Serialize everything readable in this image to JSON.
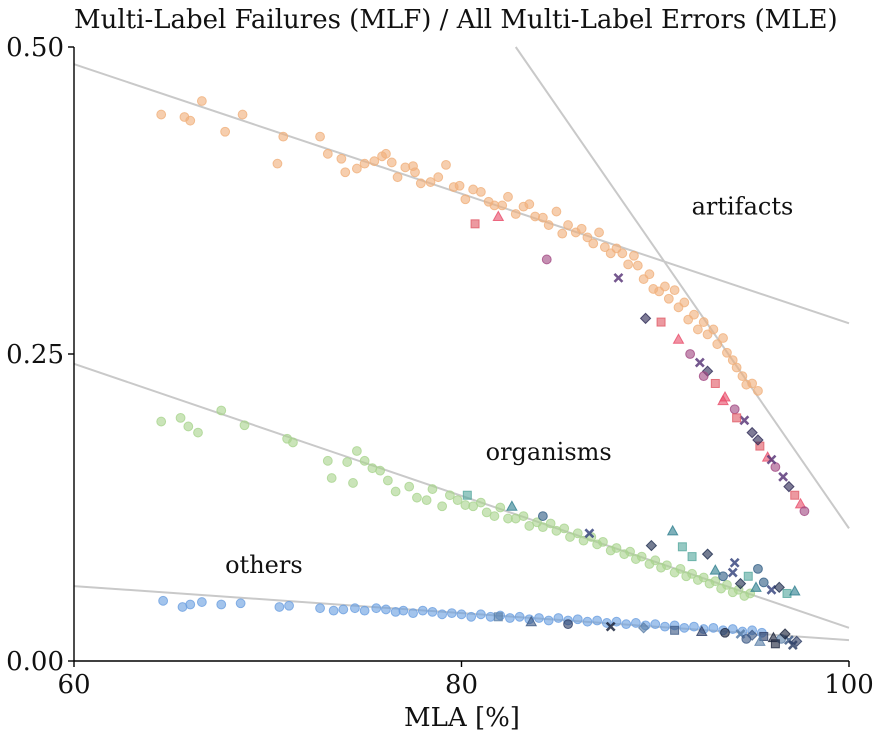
{
  "colors": {
    "artifacts_main": "#f0b07c",
    "artifacts_alt": [
      "#e05a66",
      "#e84d6a",
      "#a24a83",
      "#5c3a7a",
      "#2e2a56"
    ],
    "organisms_main": "#a9d48e",
    "organisms_alt": [
      "#55a89e",
      "#2f7f8f",
      "#325f86",
      "#3a4880",
      "#1e2d4f"
    ],
    "others_main": "#6b9fe0",
    "others_alt": [
      "#5b7fa8",
      "#3d5a86",
      "#2e3f66",
      "#1b243c"
    ],
    "trend_line": "#c9c9c9",
    "axis": "#000000"
  },
  "chart_data": {
    "type": "scatter",
    "title": "Multi-Label Failures (MLF) / All Multi-Label Errors (MLE)",
    "xlabel": "MLA [%]",
    "ylabel": "",
    "xlim": [
      60,
      100
    ],
    "ylim": [
      0,
      0.5
    ],
    "x_ticks": [
      "60",
      "80",
      "100"
    ],
    "y_ticks": [
      "0.00",
      "0.25",
      "0.50"
    ],
    "grid": false,
    "annotations": [
      {
        "text": "artifacts",
        "x": 94.5,
        "y": 0.37
      },
      {
        "text": "organisms",
        "x": 84.5,
        "y": 0.17
      },
      {
        "text": "others",
        "x": 69.8,
        "y": 0.078
      }
    ],
    "trend_lines": [
      {
        "x": [
          60,
          100
        ],
        "y": [
          0.486,
          0.275
        ]
      },
      {
        "x": [
          82.8,
          100
        ],
        "y": [
          0.5,
          0.108
        ]
      },
      {
        "x": [
          60,
          100
        ],
        "y": [
          0.242,
          0.027
        ]
      },
      {
        "x": [
          60,
          100
        ],
        "y": [
          0.061,
          0.017
        ]
      }
    ],
    "series": [
      {
        "group": "artifacts",
        "points": [
          [
            64.5,
            0.445
          ],
          [
            65.7,
            0.443
          ],
          [
            66.0,
            0.44
          ],
          [
            66.6,
            0.456
          ],
          [
            67.8,
            0.431
          ],
          [
            68.7,
            0.445
          ],
          [
            70.5,
            0.405
          ],
          [
            70.8,
            0.427
          ],
          [
            72.7,
            0.427
          ],
          [
            73.1,
            0.413
          ],
          [
            73.8,
            0.409
          ],
          [
            74.0,
            0.398
          ],
          [
            74.6,
            0.401
          ],
          [
            75.0,
            0.405
          ],
          [
            75.5,
            0.407
          ],
          [
            75.9,
            0.411
          ],
          [
            76.1,
            0.413
          ],
          [
            76.4,
            0.406
          ],
          [
            76.7,
            0.394
          ],
          [
            77.1,
            0.402
          ],
          [
            77.5,
            0.403
          ],
          [
            77.6,
            0.398
          ],
          [
            77.9,
            0.389
          ],
          [
            78.4,
            0.39
          ],
          [
            78.8,
            0.394
          ],
          [
            79.2,
            0.404
          ],
          [
            79.6,
            0.386
          ],
          [
            79.9,
            0.387
          ],
          [
            80.2,
            0.376
          ],
          [
            80.6,
            0.384
          ],
          [
            81.0,
            0.382
          ],
          [
            81.4,
            0.374
          ],
          [
            81.7,
            0.371
          ],
          [
            82.1,
            0.371
          ],
          [
            82.4,
            0.378
          ],
          [
            82.8,
            0.364
          ],
          [
            83.2,
            0.37
          ],
          [
            83.5,
            0.372
          ],
          [
            83.8,
            0.362
          ],
          [
            84.2,
            0.361
          ],
          [
            84.5,
            0.355
          ],
          [
            84.9,
            0.366
          ],
          [
            85.2,
            0.348
          ],
          [
            85.5,
            0.355
          ],
          [
            85.9,
            0.349
          ],
          [
            86.2,
            0.352
          ],
          [
            86.5,
            0.345
          ],
          [
            86.8,
            0.34
          ],
          [
            87.1,
            0.349
          ],
          [
            87.4,
            0.337
          ],
          [
            87.7,
            0.332
          ],
          [
            88.0,
            0.336
          ],
          [
            88.3,
            0.332
          ],
          [
            88.6,
            0.323
          ],
          [
            88.9,
            0.33
          ],
          [
            89.1,
            0.322
          ],
          [
            89.4,
            0.311
          ],
          [
            89.7,
            0.315
          ],
          [
            89.9,
            0.303
          ],
          [
            90.2,
            0.301
          ],
          [
            90.5,
            0.305
          ],
          [
            90.7,
            0.295
          ],
          [
            91.0,
            0.302
          ],
          [
            91.2,
            0.288
          ],
          [
            91.5,
            0.292
          ],
          [
            91.7,
            0.278
          ],
          [
            92.0,
            0.282
          ],
          [
            92.2,
            0.27
          ],
          [
            92.5,
            0.276
          ],
          [
            92.7,
            0.266
          ],
          [
            93.0,
            0.27
          ],
          [
            93.2,
            0.258
          ],
          [
            93.5,
            0.263
          ],
          [
            93.7,
            0.251
          ],
          [
            94.0,
            0.245
          ],
          [
            94.2,
            0.239
          ],
          [
            94.5,
            0.232
          ],
          [
            94.7,
            0.225
          ],
          [
            95.0,
            0.226
          ],
          [
            95.3,
            0.22
          ]
        ]
      },
      {
        "group": "artifacts-hard",
        "points": [
          [
            80.7,
            0.356
          ],
          [
            81.9,
            0.362
          ],
          [
            84.4,
            0.327
          ],
          [
            88.1,
            0.312
          ],
          [
            89.5,
            0.279
          ],
          [
            90.3,
            0.276
          ],
          [
            91.2,
            0.262
          ],
          [
            91.8,
            0.25
          ],
          [
            92.3,
            0.243
          ],
          [
            92.7,
            0.236
          ],
          [
            93.1,
            0.226
          ],
          [
            93.6,
            0.215
          ],
          [
            94.1,
            0.205
          ],
          [
            94.6,
            0.196
          ],
          [
            95.0,
            0.186
          ],
          [
            95.4,
            0.175
          ],
          [
            95.8,
            0.166
          ],
          [
            96.2,
            0.158
          ],
          [
            96.6,
            0.15
          ],
          [
            96.9,
            0.142
          ],
          [
            97.2,
            0.135
          ],
          [
            97.5,
            0.128
          ],
          [
            97.7,
            0.122
          ],
          [
            96.0,
            0.164
          ],
          [
            95.3,
            0.18
          ],
          [
            94.2,
            0.198
          ],
          [
            93.5,
            0.212
          ],
          [
            92.5,
            0.232
          ]
        ]
      },
      {
        "group": "organisms",
        "points": [
          [
            64.5,
            0.195
          ],
          [
            65.5,
            0.198
          ],
          [
            65.9,
            0.191
          ],
          [
            66.4,
            0.186
          ],
          [
            67.6,
            0.204
          ],
          [
            68.8,
            0.192
          ],
          [
            71.0,
            0.181
          ],
          [
            71.3,
            0.178
          ],
          [
            73.1,
            0.163
          ],
          [
            73.3,
            0.149
          ],
          [
            74.1,
            0.162
          ],
          [
            74.4,
            0.145
          ],
          [
            74.6,
            0.171
          ],
          [
            75.0,
            0.163
          ],
          [
            75.4,
            0.157
          ],
          [
            75.8,
            0.155
          ],
          [
            76.2,
            0.147
          ],
          [
            76.6,
            0.138
          ],
          [
            77.3,
            0.142
          ],
          [
            77.7,
            0.133
          ],
          [
            78.2,
            0.131
          ],
          [
            78.5,
            0.14
          ],
          [
            79.0,
            0.126
          ],
          [
            79.4,
            0.135
          ],
          [
            79.8,
            0.131
          ],
          [
            80.2,
            0.127
          ],
          [
            80.6,
            0.126
          ],
          [
            81.0,
            0.129
          ],
          [
            81.3,
            0.121
          ],
          [
            81.7,
            0.118
          ],
          [
            82.0,
            0.125
          ],
          [
            82.4,
            0.116
          ],
          [
            82.8,
            0.116
          ],
          [
            83.2,
            0.118
          ],
          [
            83.5,
            0.11
          ],
          [
            83.9,
            0.113
          ],
          [
            84.2,
            0.109
          ],
          [
            84.6,
            0.112
          ],
          [
            84.9,
            0.106
          ],
          [
            85.3,
            0.108
          ],
          [
            85.6,
            0.101
          ],
          [
            86.0,
            0.104
          ],
          [
            86.3,
            0.098
          ],
          [
            86.7,
            0.101
          ],
          [
            87.0,
            0.095
          ],
          [
            87.3,
            0.097
          ],
          [
            87.7,
            0.09
          ],
          [
            88.0,
            0.092
          ],
          [
            88.4,
            0.087
          ],
          [
            88.7,
            0.089
          ],
          [
            89.0,
            0.083
          ],
          [
            89.3,
            0.085
          ],
          [
            89.7,
            0.079
          ],
          [
            90.0,
            0.082
          ],
          [
            90.3,
            0.076
          ],
          [
            90.6,
            0.078
          ],
          [
            91.0,
            0.072
          ],
          [
            91.3,
            0.075
          ],
          [
            91.6,
            0.069
          ],
          [
            91.9,
            0.071
          ],
          [
            92.2,
            0.066
          ],
          [
            92.5,
            0.068
          ],
          [
            92.8,
            0.063
          ],
          [
            93.1,
            0.065
          ],
          [
            93.4,
            0.059
          ],
          [
            93.7,
            0.062
          ],
          [
            94.0,
            0.056
          ],
          [
            94.3,
            0.058
          ],
          [
            94.6,
            0.053
          ],
          [
            94.9,
            0.055
          ]
        ]
      },
      {
        "group": "organisms-hard",
        "points": [
          [
            80.3,
            0.135
          ],
          [
            82.6,
            0.126
          ],
          [
            84.2,
            0.118
          ],
          [
            86.6,
            0.104
          ],
          [
            89.8,
            0.094
          ],
          [
            91.9,
            0.085
          ],
          [
            93.1,
            0.074
          ],
          [
            93.5,
            0.069
          ],
          [
            94.0,
            0.072
          ],
          [
            94.4,
            0.063
          ],
          [
            94.8,
            0.069
          ],
          [
            95.2,
            0.06
          ],
          [
            95.6,
            0.064
          ],
          [
            96.0,
            0.058
          ],
          [
            96.4,
            0.06
          ],
          [
            96.8,
            0.055
          ],
          [
            97.2,
            0.057
          ],
          [
            95.3,
            0.075
          ],
          [
            94.1,
            0.08
          ],
          [
            92.7,
            0.087
          ],
          [
            91.4,
            0.093
          ],
          [
            90.9,
            0.106
          ]
        ]
      },
      {
        "group": "others",
        "points": [
          [
            64.6,
            0.049
          ],
          [
            65.6,
            0.044
          ],
          [
            66.0,
            0.046
          ],
          [
            66.6,
            0.048
          ],
          [
            67.6,
            0.046
          ],
          [
            68.6,
            0.047
          ],
          [
            70.6,
            0.044
          ],
          [
            71.1,
            0.045
          ],
          [
            72.7,
            0.043
          ],
          [
            73.4,
            0.041
          ],
          [
            73.9,
            0.042
          ],
          [
            74.5,
            0.043
          ],
          [
            75.0,
            0.041
          ],
          [
            75.6,
            0.043
          ],
          [
            76.1,
            0.042
          ],
          [
            76.6,
            0.04
          ],
          [
            77.0,
            0.041
          ],
          [
            77.5,
            0.039
          ],
          [
            78.0,
            0.041
          ],
          [
            78.5,
            0.04
          ],
          [
            79.0,
            0.038
          ],
          [
            79.5,
            0.039
          ],
          [
            80.0,
            0.038
          ],
          [
            80.5,
            0.036
          ],
          [
            81.0,
            0.038
          ],
          [
            81.5,
            0.036
          ],
          [
            82.0,
            0.037
          ],
          [
            82.5,
            0.035
          ],
          [
            83.0,
            0.036
          ],
          [
            83.5,
            0.034
          ],
          [
            84.0,
            0.035
          ],
          [
            84.5,
            0.033
          ],
          [
            85.0,
            0.035
          ],
          [
            85.5,
            0.033
          ],
          [
            86.0,
            0.034
          ],
          [
            86.5,
            0.032
          ],
          [
            87.0,
            0.033
          ],
          [
            87.5,
            0.031
          ],
          [
            88.0,
            0.032
          ],
          [
            88.5,
            0.03
          ],
          [
            89.0,
            0.031
          ],
          [
            89.5,
            0.029
          ],
          [
            90.0,
            0.03
          ],
          [
            90.5,
            0.028
          ],
          [
            91.0,
            0.029
          ],
          [
            91.5,
            0.027
          ],
          [
            92.0,
            0.028
          ],
          [
            92.5,
            0.026
          ],
          [
            93.0,
            0.027
          ],
          [
            93.5,
            0.025
          ],
          [
            94.0,
            0.026
          ],
          [
            94.5,
            0.024
          ],
          [
            95.0,
            0.025
          ],
          [
            95.5,
            0.023
          ]
        ]
      },
      {
        "group": "others-hard",
        "points": [
          [
            81.9,
            0.036
          ],
          [
            83.6,
            0.032
          ],
          [
            85.5,
            0.03
          ],
          [
            87.7,
            0.028
          ],
          [
            89.4,
            0.027
          ],
          [
            91.0,
            0.025
          ],
          [
            92.4,
            0.024
          ],
          [
            93.6,
            0.023
          ],
          [
            94.4,
            0.022
          ],
          [
            95.0,
            0.021
          ],
          [
            95.6,
            0.02
          ],
          [
            96.1,
            0.019
          ],
          [
            96.5,
            0.018
          ],
          [
            96.9,
            0.017
          ],
          [
            97.3,
            0.016
          ],
          [
            96.2,
            0.014
          ],
          [
            95.4,
            0.016
          ],
          [
            94.7,
            0.018
          ],
          [
            97.1,
            0.013
          ],
          [
            96.7,
            0.022
          ]
        ]
      }
    ]
  }
}
